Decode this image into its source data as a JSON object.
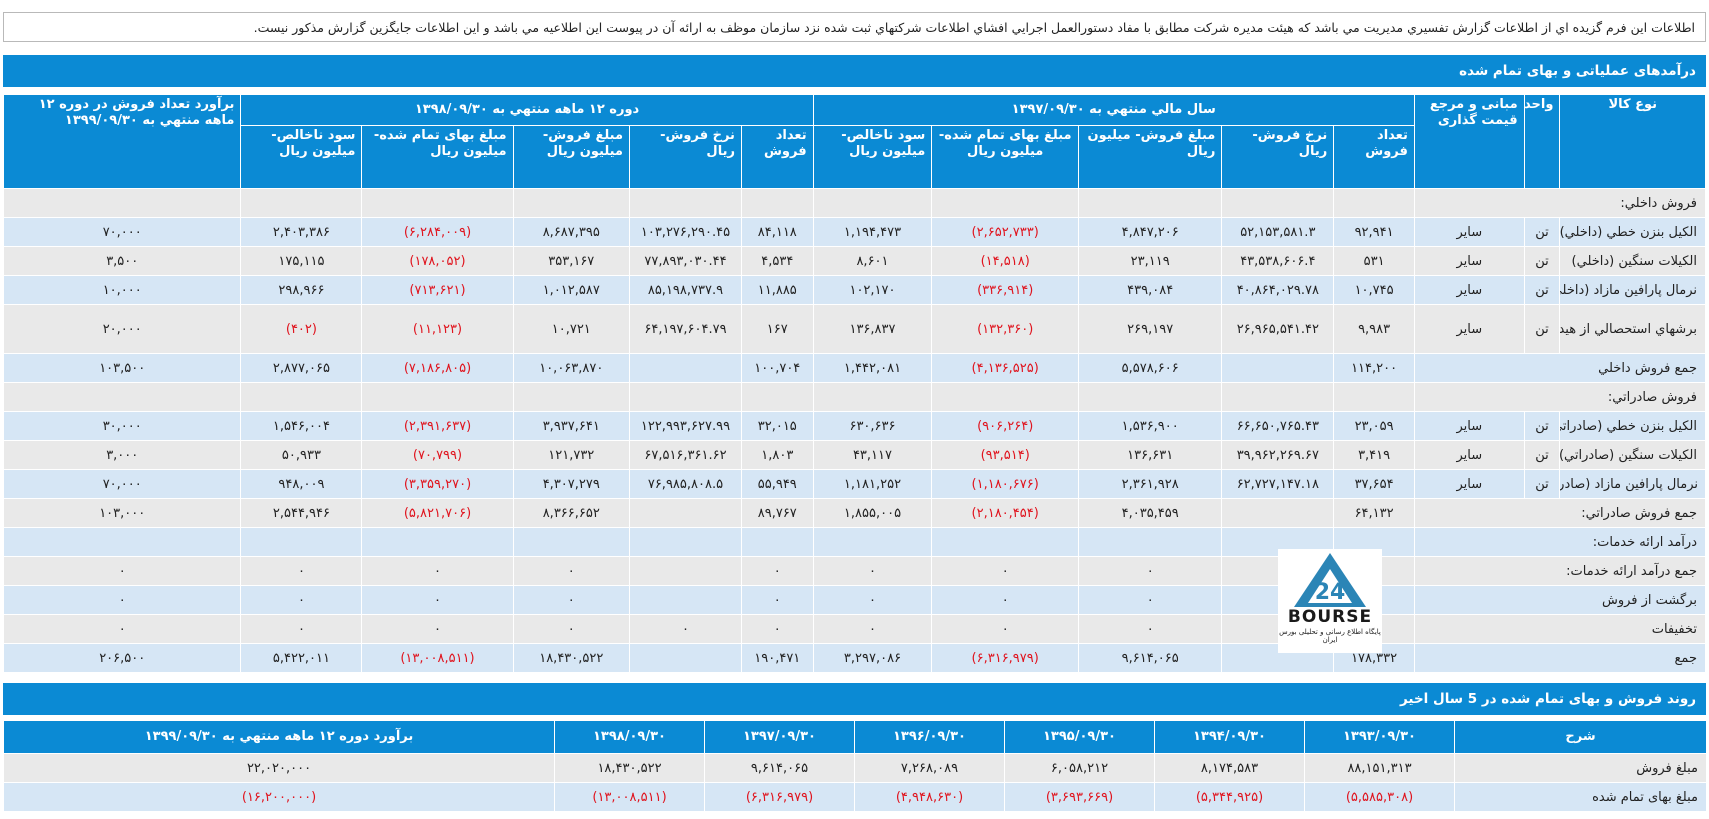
{
  "notice": "اطلاعات اين فرم گزيده اي از اطلاعات گزارش تفسيري مديريت مي باشد که هيئت مديره شرکت مطابق با مفاد دستورالعمل اجرايي افشاي اطلاعات شرکتهاي ثبت شده نزد سازمان موظف به ارائه آن در پيوست اين اطلاعيه مي باشد و اين اطلاعات جايگزين گزارش مذکور نيست.",
  "section1_title": "درآمدهای عملياتی و بهای تمام شده",
  "headers": {
    "product_type": "نوع کالا",
    "unit": "واحد",
    "pricing_basis": "مبانی و مرجع قیمت گذاری",
    "fy1397": "سال مالي منتهي به ۱۳۹۷/۰۹/۳۰",
    "period1398": "دوره ۱۲ ماهه منتهي به ۱۳۹۸/۰۹/۳۰",
    "estimate": "برآورد تعداد فروش در دوره ۱۲ ماهه منتهي به ۱۳۹۹/۰۹/۳۰",
    "qty": "تعداد فروش",
    "rate": "نرخ فروش- ريال",
    "sales_amount": "مبلغ فروش- ميليون ريال",
    "cost_amount_a": "مبلغ بهای تمام شده- ميليون ريال",
    "cost_amount_b": "مبلغ بهای تمام شده- ميليون ريال",
    "gross_profit": "سود ناخالص- ميليون ريال"
  },
  "rows": [
    {
      "type": "section",
      "name": "فروش داخلي:"
    },
    {
      "name": "الکيل بنزن خطي (داخلي)",
      "unit": "تن",
      "basis": "ساير",
      "q97": "۹۲,۹۴۱",
      "r97": "۵۲,۱۵۳,۵۸۱.۳",
      "s97": "۴,۸۴۷,۲۰۶",
      "c97": "(۲,۶۵۲,۷۳۳)",
      "g97": "۱,۱۹۴,۴۷۳",
      "q98": "۸۴,۱۱۸",
      "r98": "۱۰۳,۲۷۶,۲۹۰.۴۵",
      "s98": "۸,۶۸۷,۳۹۵",
      "c98": "(۶,۲۸۴,۰۰۹)",
      "g98": "۲,۴۰۳,۳۸۶",
      "est": "۷۰,۰۰۰"
    },
    {
      "name": "الکيلات سنگين (داخلي)",
      "unit": "تن",
      "basis": "ساير",
      "q97": "۵۳۱",
      "r97": "۴۳,۵۳۸,۶۰۶.۴",
      "s97": "۲۳,۱۱۹",
      "c97": "(۱۴,۵۱۸)",
      "g97": "۸,۶۰۱",
      "q98": "۴,۵۳۴",
      "r98": "۷۷,۸۹۳,۰۳۰.۴۴",
      "s98": "۳۵۳,۱۶۷",
      "c98": "(۱۷۸,۰۵۲)",
      "g98": "۱۷۵,۱۱۵",
      "est": "۳,۵۰۰"
    },
    {
      "name": "نرمال پارافين مازاد (داخلي)",
      "unit": "تن",
      "basis": "ساير",
      "q97": "۱۰,۷۴۵",
      "r97": "۴۰,۸۶۴,۰۲۹.۷۸",
      "s97": "۴۳۹,۰۸۴",
      "c97": "(۳۳۶,۹۱۴)",
      "g97": "۱۰۲,۱۷۰",
      "q98": "۱۱,۸۸۵",
      "r98": "۸۵,۱۹۸,۷۳۷.۹",
      "s98": "۱,۰۱۲,۵۸۷",
      "c98": "(۷۱۳,۶۲۱)",
      "g98": "۲۹۸,۹۶۶",
      "est": "۱۰,۰۰۰"
    },
    {
      "tall": true,
      "name": "برشهاي استحصالي از هيدروکربورهاي تهيه شده از سايرمنابع (داخلي)",
      "unit": "تن",
      "basis": "ساير",
      "q97": "۹,۹۸۳",
      "r97": "۲۶,۹۶۵,۵۴۱.۴۲",
      "s97": "۲۶۹,۱۹۷",
      "c97": "(۱۳۲,۳۶۰)",
      "g97": "۱۳۶,۸۳۷",
      "q98": "۱۶۷",
      "r98": "۶۴,۱۹۷,۶۰۴.۷۹",
      "s98": "۱۰,۷۲۱",
      "c98": "(۱۱,۱۲۳)",
      "g98": "(۴۰۲)",
      "est": "۲۰,۰۰۰"
    },
    {
      "type": "total",
      "name": "جمع فروش داخلي",
      "q97": "۱۱۴,۲۰۰",
      "s97": "۵,۵۷۸,۶۰۶",
      "c97": "(۴,۱۳۶,۵۲۵)",
      "g97": "۱,۴۴۲,۰۸۱",
      "q98": "۱۰۰,۷۰۴",
      "s98": "۱۰,۰۶۳,۸۷۰",
      "c98": "(۷,۱۸۶,۸۰۵)",
      "g98": "۲,۸۷۷,۰۶۵",
      "est": "۱۰۳,۵۰۰"
    },
    {
      "type": "section",
      "name": "فروش صادراتي:"
    },
    {
      "name": "الکيل بنزن خطي (صادراتي)",
      "unit": "تن",
      "basis": "ساير",
      "q97": "۲۳,۰۵۹",
      "r97": "۶۶,۶۵۰,۷۶۵.۴۳",
      "s97": "۱,۵۳۶,۹۰۰",
      "c97": "(۹۰۶,۲۶۴)",
      "g97": "۶۳۰,۶۳۶",
      "q98": "۳۲,۰۱۵",
      "r98": "۱۲۲,۹۹۳,۶۲۷.۹۹",
      "s98": "۳,۹۳۷,۶۴۱",
      "c98": "(۲,۳۹۱,۶۳۷)",
      "g98": "۱,۵۴۶,۰۰۴",
      "est": "۳۰,۰۰۰"
    },
    {
      "name": "الکيلات سنگين (صادراتي)",
      "unit": "تن",
      "basis": "ساير",
      "q97": "۳,۴۱۹",
      "r97": "۳۹,۹۶۲,۲۶۹.۶۷",
      "s97": "۱۳۶,۶۳۱",
      "c97": "(۹۳,۵۱۴)",
      "g97": "۴۳,۱۱۷",
      "q98": "۱,۸۰۳",
      "r98": "۶۷,۵۱۶,۳۶۱.۶۲",
      "s98": "۱۲۱,۷۳۲",
      "c98": "(۷۰,۷۹۹)",
      "g98": "۵۰,۹۳۳",
      "est": "۳,۰۰۰"
    },
    {
      "name": "نرمال پارافين مازاد (صادراتي)",
      "unit": "تن",
      "basis": "ساير",
      "q97": "۳۷,۶۵۴",
      "r97": "۶۲,۷۲۷,۱۴۷.۱۸",
      "s97": "۲,۳۶۱,۹۲۸",
      "c97": "(۱,۱۸۰,۶۷۶)",
      "g97": "۱,۱۸۱,۲۵۲",
      "q98": "۵۵,۹۴۹",
      "r98": "۷۶,۹۸۵,۸۰۸.۵",
      "s98": "۴,۳۰۷,۲۷۹",
      "c98": "(۳,۳۵۹,۲۷۰)",
      "g98": "۹۴۸,۰۰۹",
      "est": "۷۰,۰۰۰"
    },
    {
      "type": "total",
      "name": "جمع فروش صادراتي:",
      "q97": "۶۴,۱۳۲",
      "s97": "۴,۰۳۵,۴۵۹",
      "c97": "(۲,۱۸۰,۴۵۴)",
      "g97": "۱,۸۵۵,۰۰۵",
      "q98": "۸۹,۷۶۷",
      "s98": "۸,۳۶۶,۶۵۲",
      "c98": "(۵,۸۲۱,۷۰۶)",
      "g98": "۲,۵۴۴,۹۴۶",
      "est": "۱۰۳,۰۰۰"
    },
    {
      "type": "section",
      "name": "درآمد ارائه خدمات:"
    },
    {
      "type": "total",
      "name": "جمع درآمد ارائه خدمات:",
      "q97": "۰",
      "s97": "۰",
      "c97": "۰",
      "g97": "۰",
      "q98": "۰",
      "s98": "۰",
      "c98": "۰",
      "g98": "۰",
      "est": "۰"
    },
    {
      "type": "total",
      "name": "برگشت از فروش",
      "q97": "۰",
      "s97": "۰",
      "c97": "۰",
      "g97": "۰",
      "q98": "۰",
      "s98": "۰",
      "c98": "۰",
      "g98": "۰",
      "est": "۰"
    },
    {
      "type": "total",
      "name": "تخفيفات",
      "q97": "۰",
      "s97": "۰",
      "c97": "۰",
      "g97": "۰",
      "q98": "۰",
      "r98": "۰",
      "s98": "۰",
      "c98": "۰",
      "g98": "۰",
      "est": "۰"
    },
    {
      "type": "total",
      "name": "جمع",
      "q97": "۱۷۸,۳۳۲",
      "s97": "۹,۶۱۴,۰۶۵",
      "c97": "(۶,۳۱۶,۹۷۹)",
      "g97": "۳,۲۹۷,۰۸۶",
      "q98": "۱۹۰,۴۷۱",
      "s98": "۱۸,۴۳۰,۵۲۲",
      "c98": "(۱۳,۰۰۸,۵۱۱)",
      "g98": "۵,۴۲۲,۰۱۱",
      "est": "۲۰۶,۵۰۰"
    }
  ],
  "logo": {
    "brand": "BOURSE",
    "tagline": "پايگاه اطلاع رسانی و تحليلی بورس ايران",
    "glyph": "24"
  },
  "section2_title": "روند فروش و بهای تمام شده در 5 سال اخير",
  "trend": {
    "label_header": "شرح",
    "columns": [
      "۱۳۹۳/۰۹/۳۰",
      "۱۳۹۴/۰۹/۳۰",
      "۱۳۹۵/۰۹/۳۰",
      "۱۳۹۶/۰۹/۳۰",
      "۱۳۹۷/۰۹/۳۰",
      "۱۳۹۸/۰۹/۳۰",
      "برآورد دوره ۱۲ ماهه منتهي به ۱۳۹۹/۰۹/۳۰"
    ],
    "rows": [
      {
        "label": "مبلغ فروش",
        "values": [
          "۸۸,۱۵۱,۳۱۳",
          "۸,۱۷۴,۵۸۳",
          "۶,۰۵۸,۲۱۲",
          "۷,۲۶۸,۰۸۹",
          "۹,۶۱۴,۰۶۵",
          "۱۸,۴۳۰,۵۲۲",
          "۲۲,۰۲۰,۰۰۰"
        ]
      },
      {
        "label": "مبلغ بهای تمام شده",
        "values": [
          "(۵,۵۸۵,۳۰۸)",
          "(۵,۳۴۴,۹۲۵)",
          "(۳,۶۹۳,۶۶۹)",
          "(۴,۹۴۸,۶۳۰)",
          "(۶,۳۱۶,۹۷۹)",
          "(۱۳,۰۰۸,۵۱۱)",
          "(۱۶,۲۰۰,۰۰۰)"
        ]
      }
    ]
  },
  "colors": {
    "header_blue": "#0b8ad4",
    "row_gray": "#e9e9e9",
    "row_blue": "#d6e6f5",
    "negative_red": "#e0141e"
  }
}
